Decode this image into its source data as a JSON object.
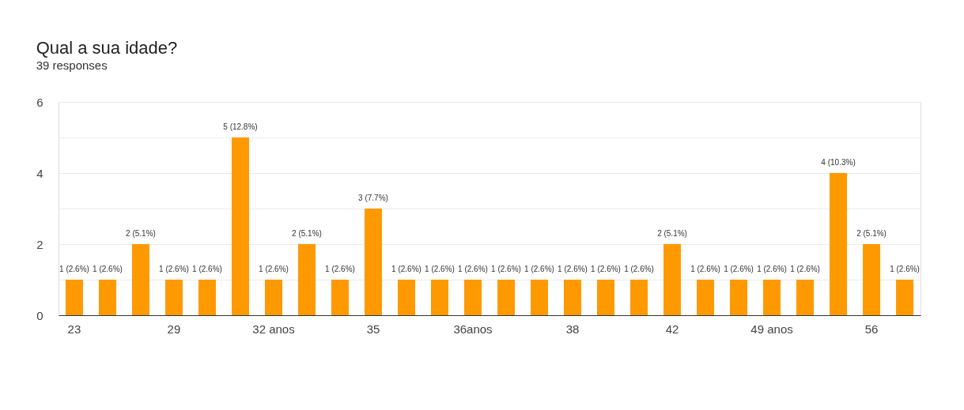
{
  "chart_data": {
    "type": "bar",
    "title": "Qual a sua idade?",
    "subtitle": "39 responses",
    "categories": [
      "23",
      null,
      null,
      "29",
      null,
      null,
      "32 anos",
      null,
      null,
      "35",
      null,
      null,
      "36anos",
      null,
      null,
      "38",
      null,
      null,
      "42",
      null,
      null,
      "49 anos",
      null,
      null,
      "56",
      null
    ],
    "values": [
      1,
      1,
      2,
      1,
      1,
      5,
      1,
      2,
      1,
      3,
      1,
      1,
      1,
      1,
      1,
      1,
      1,
      1,
      2,
      1,
      1,
      1,
      1,
      4,
      2,
      1
    ],
    "color": "#ff9900",
    "value_labels": [
      "1 (2.6%)",
      "1 (2.6%)",
      "2 (5.1%)",
      "1 (2.6%)",
      "1 (2.6%)",
      "5 (12.8%)",
      "1 (2.6%)",
      "2 (5.1%)",
      "1 (2.6%)",
      "3 (7.7%)",
      "1 (2.6%)",
      "1 (2.6%)",
      "1 (2.6%)",
      "1 (2.6%)",
      "1 (2.6%)",
      "1 (2.6%)",
      "1 (2.6%)",
      "1 (2.6%)",
      "2 (5.1%)",
      "1 (2.6%)",
      "1 (2.6%)",
      "1 (2.6%)",
      "1 (2.6%)",
      "4 (10.3%)",
      "2 (5.1%)",
      "1 (2.6%)"
    ],
    "ylim": [
      0,
      6
    ],
    "yticks": [
      0,
      {
        "value": 1,
        "label": null
      },
      2,
      {
        "value": 3,
        "label": null
      },
      4,
      {
        "value": 5,
        "label": null
      },
      6
    ],
    "grid": "y"
  }
}
